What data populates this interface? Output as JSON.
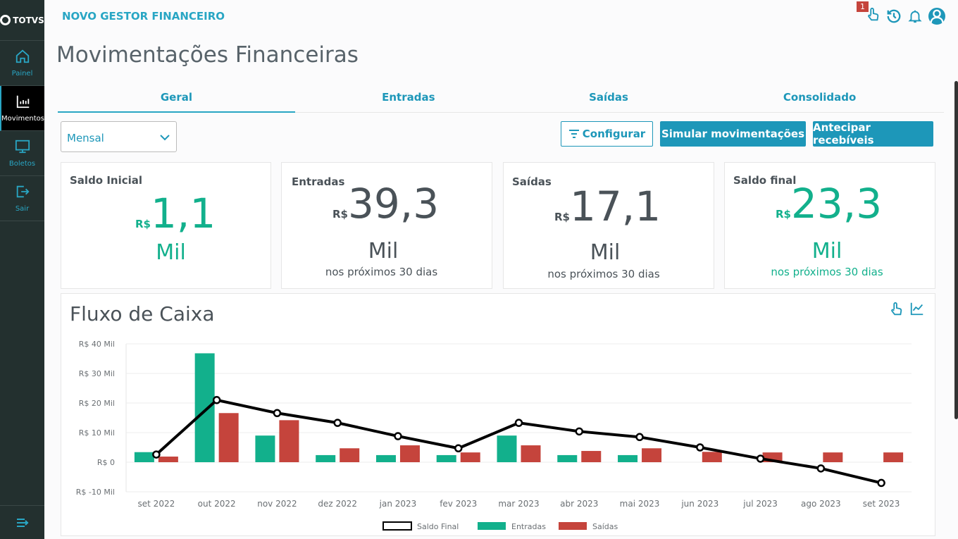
{
  "sidebar": {
    "logo": "TOTVS",
    "items": [
      {
        "label": "Painel"
      },
      {
        "label": "Movimentos"
      },
      {
        "label": "Boletos"
      },
      {
        "label": "Sair"
      }
    ]
  },
  "header": {
    "app_title": "NOVO GESTOR FINANCEIRO",
    "badge": "1"
  },
  "page_title": "Movimentações Financeiras",
  "tabs": [
    {
      "label": "Geral"
    },
    {
      "label": "Entradas"
    },
    {
      "label": "Saídas"
    },
    {
      "label": "Consolidado"
    }
  ],
  "period_select": {
    "value": "Mensal"
  },
  "buttons": {
    "configurar": "Configurar",
    "simular": "Simular movimentações",
    "antecipar": "Antecipar recebíveis"
  },
  "cards": [
    {
      "title": "Saldo Inicial",
      "currency": "R$",
      "value": "1,1",
      "unit": "Mil",
      "sub": ""
    },
    {
      "title": "Entradas",
      "currency": "R$",
      "value": "39,3",
      "unit": "Mil",
      "sub": "nos próximos 30 dias"
    },
    {
      "title": "Saídas",
      "currency": "R$",
      "value": "17,1",
      "unit": "Mil",
      "sub": "nos próximos 30 dias"
    },
    {
      "title": "Saldo final",
      "currency": "R$",
      "value": "23,3",
      "unit": "Mil",
      "sub": "nos próximos 30 dias"
    }
  ],
  "chart_data": {
    "type": "bar",
    "title": "Fluxo de Caixa",
    "categories": [
      "set 2022",
      "out 2022",
      "nov 2022",
      "dez 2022",
      "jan 2023",
      "fev 2023",
      "mar 2023",
      "abr 2023",
      "mai 2023",
      "jun 2023",
      "jul 2023",
      "ago 2023",
      "set 2023"
    ],
    "ylim": [
      -10,
      40
    ],
    "yticks": [
      {
        "v": 40,
        "label": "R$ 40 Mil"
      },
      {
        "v": 30,
        "label": "R$ 30 Mil"
      },
      {
        "v": 20,
        "label": "R$ 20 Mil"
      },
      {
        "v": 10,
        "label": "R$ 10 Mil"
      },
      {
        "v": 0,
        "label": "R$ 0"
      },
      {
        "v": -10,
        "label": "R$ -10 Mil"
      }
    ],
    "series": [
      {
        "name": "Saldo Final",
        "type": "line",
        "color": "#000000",
        "values": [
          2.6,
          21,
          16.6,
          13.3,
          8.8,
          4.7,
          13.3,
          10.4,
          8.5,
          5,
          1.2,
          -2.1,
          -7
        ]
      },
      {
        "name": "Entradas",
        "type": "bar",
        "color": "#12b08c",
        "values": [
          3.4,
          36.8,
          9,
          2.4,
          2.4,
          2.4,
          9,
          2.4,
          2.4,
          0,
          0,
          0,
          0
        ]
      },
      {
        "name": "Saídas",
        "type": "bar",
        "color": "#c5443c",
        "values": [
          1.9,
          16.6,
          14.2,
          4.7,
          5.7,
          3.3,
          5.7,
          3.8,
          4.7,
          3.5,
          3.3,
          3.3,
          3.3
        ]
      }
    ],
    "legend": "bottom-center",
    "grid": true
  }
}
